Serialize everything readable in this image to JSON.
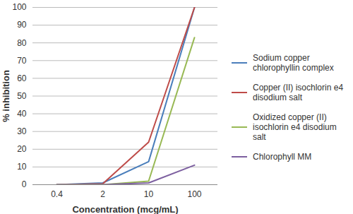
{
  "chart_data": {
    "type": "line",
    "x_label": "Concentration (mcg/mL)",
    "y_label": "% inhibition",
    "categories": [
      "0.4",
      "2",
      "10",
      "100"
    ],
    "series": [
      {
        "name": "Sodium copper chlorophyllin complex",
        "color": "#4a7ebb",
        "values": [
          0,
          1,
          13,
          100
        ]
      },
      {
        "name": "Copper (II) isochlorin e4 disodium salt",
        "color": "#be4b48",
        "values": [
          0,
          0.5,
          24,
          100
        ]
      },
      {
        "name": "Oxidized copper (II) isochlorin e4 disodium salt",
        "color": "#98b954",
        "values": [
          0,
          0,
          2,
          83
        ]
      },
      {
        "name": "Chlorophyll MM",
        "color": "#7d60a0",
        "values": [
          0,
          0,
          1,
          11
        ]
      }
    ],
    "ylim": [
      0,
      100
    ],
    "yticks": [
      0,
      10,
      20,
      30,
      40,
      50,
      60,
      70,
      80,
      90,
      100
    ],
    "grid": true,
    "legend": "right"
  }
}
